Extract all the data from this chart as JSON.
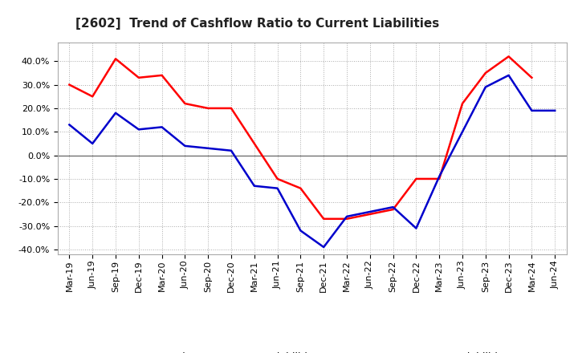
{
  "title": "[2602]  Trend of Cashflow Ratio to Current Liabilities",
  "x_labels": [
    "Mar-19",
    "Jun-19",
    "Sep-19",
    "Dec-19",
    "Mar-20",
    "Jun-20",
    "Sep-20",
    "Dec-20",
    "Mar-21",
    "Jun-21",
    "Sep-21",
    "Dec-21",
    "Mar-22",
    "Jun-22",
    "Sep-22",
    "Dec-22",
    "Mar-23",
    "Jun-23",
    "Sep-23",
    "Dec-23",
    "Mar-24",
    "Jun-24"
  ],
  "operating_cf": [
    0.3,
    0.25,
    0.41,
    0.33,
    0.34,
    0.22,
    0.2,
    0.2,
    0.05,
    -0.1,
    -0.14,
    -0.27,
    -0.27,
    -0.25,
    -0.23,
    -0.1,
    -0.1,
    0.22,
    0.35,
    0.42,
    0.33,
    null
  ],
  "free_cf": [
    0.13,
    0.05,
    0.18,
    0.11,
    0.12,
    0.04,
    0.03,
    0.02,
    -0.13,
    -0.14,
    -0.32,
    -0.39,
    -0.26,
    -0.24,
    -0.22,
    -0.31,
    -0.09,
    0.1,
    0.29,
    0.34,
    0.19,
    0.19
  ],
  "operating_color": "#FF0000",
  "free_color": "#0000CC",
  "ylim": [
    -0.42,
    0.48
  ],
  "yticks": [
    -0.4,
    -0.3,
    -0.2,
    -0.1,
    0.0,
    0.1,
    0.2,
    0.3,
    0.4
  ],
  "legend_labels": [
    "Operating CF to Current Liabilities",
    "Free CF to Current Liabilities"
  ],
  "bg_color": "#FFFFFF",
  "plot_bg_color": "#FFFFFF",
  "grid_color": "#AAAAAA",
  "title_fontsize": 11,
  "label_fontsize": 9,
  "tick_fontsize": 8
}
